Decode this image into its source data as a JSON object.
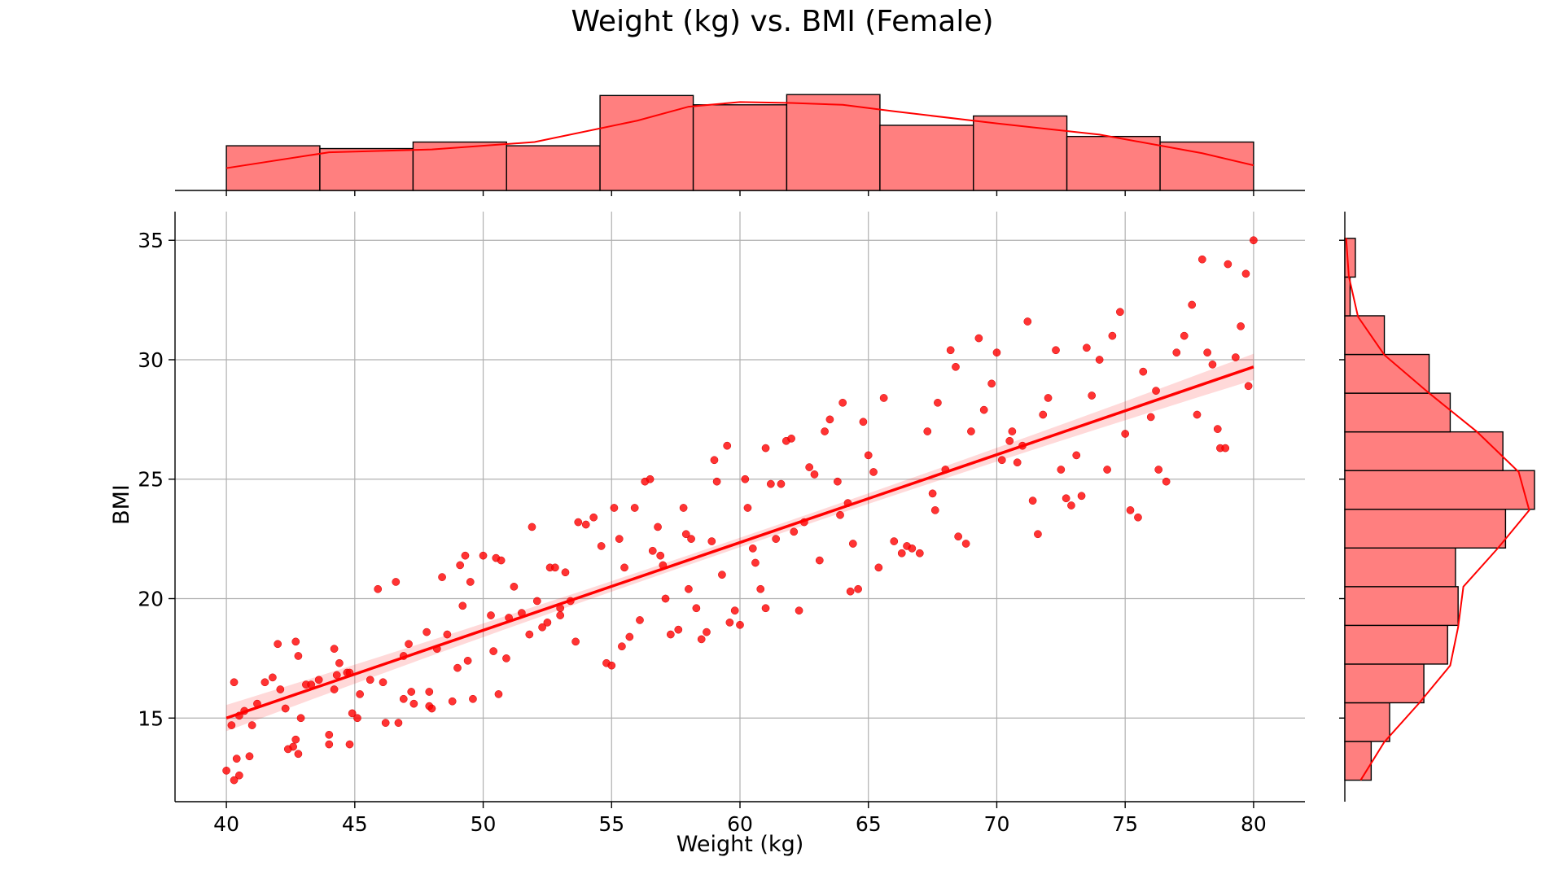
{
  "chart_data": {
    "type": "scatter",
    "title": "Weight (kg) vs. BMI (Female)",
    "xlabel": "Weight (kg)",
    "ylabel": "BMI",
    "xlim": [
      38,
      82
    ],
    "ylim": [
      11.5,
      36.2
    ],
    "grid": true,
    "x_ticks": [
      40,
      45,
      50,
      55,
      60,
      65,
      70,
      75,
      80
    ],
    "y_ticks": [
      15,
      20,
      25,
      30,
      35
    ],
    "point_color": "#ff0000",
    "hist_color": "#ff7f7f",
    "regression": {
      "x": [
        40,
        80
      ],
      "y": [
        15.0,
        29.7
      ],
      "ci_halfwidth_at_ends": 0.55,
      "ci_halfwidth_at_center": 0.2
    },
    "marginal_x_hist": {
      "bin_edges": [
        40,
        43.64,
        47.27,
        50.91,
        54.55,
        58.18,
        61.82,
        65.45,
        69.09,
        72.73,
        76.36,
        80
      ],
      "counts": [
        48,
        45,
        52,
        48,
        102,
        92,
        103,
        70,
        80,
        58,
        52
      ],
      "kde": [
        [
          40,
          24
        ],
        [
          44,
          41
        ],
        [
          48,
          44
        ],
        [
          52,
          52
        ],
        [
          56,
          75
        ],
        [
          58,
          90
        ],
        [
          60,
          95
        ],
        [
          62,
          94
        ],
        [
          64,
          92
        ],
        [
          66,
          85
        ],
        [
          70,
          72
        ],
        [
          74,
          60
        ],
        [
          78,
          40
        ],
        [
          80,
          27
        ]
      ]
    },
    "marginal_y_hist": {
      "bin_edges": [
        12.4,
        14.02,
        15.64,
        17.26,
        18.88,
        20.5,
        22.12,
        23.74,
        25.36,
        26.98,
        28.6,
        30.22,
        31.84,
        33.46,
        35.08
      ],
      "counts": [
        10,
        17,
        30,
        39,
        43,
        42,
        61,
        72,
        60,
        40,
        32,
        15,
        2,
        4
      ],
      "kde": [
        [
          12.4,
          6
        ],
        [
          14.0,
          15
        ],
        [
          15.6,
          28
        ],
        [
          17.2,
          40
        ],
        [
          18.8,
          43
        ],
        [
          20.5,
          45
        ],
        [
          22.1,
          58
        ],
        [
          23.7,
          70
        ],
        [
          25.3,
          66
        ],
        [
          27.0,
          50
        ],
        [
          28.6,
          32
        ],
        [
          30.2,
          15
        ],
        [
          31.8,
          5
        ],
        [
          33.5,
          1.5
        ],
        [
          35.1,
          0.5
        ]
      ]
    },
    "points": [
      [
        40.0,
        12.8
      ],
      [
        40.3,
        12.4
      ],
      [
        40.5,
        12.6
      ],
      [
        40.9,
        13.4
      ],
      [
        40.4,
        13.3
      ],
      [
        40.2,
        14.7
      ],
      [
        40.5,
        15.1
      ],
      [
        40.7,
        15.3
      ],
      [
        41.0,
        14.7
      ],
      [
        40.3,
        16.5
      ],
      [
        41.2,
        15.6
      ],
      [
        41.5,
        16.5
      ],
      [
        41.8,
        16.7
      ],
      [
        42.0,
        18.1
      ],
      [
        42.1,
        16.2
      ],
      [
        42.3,
        15.4
      ],
      [
        42.6,
        13.8
      ],
      [
        42.8,
        13.5
      ],
      [
        42.7,
        14.1
      ],
      [
        42.4,
        13.7
      ],
      [
        42.9,
        15.0
      ],
      [
        43.1,
        16.4
      ],
      [
        43.3,
        16.4
      ],
      [
        42.8,
        17.6
      ],
      [
        42.7,
        18.2
      ],
      [
        43.6,
        16.6
      ],
      [
        44.0,
        14.3
      ],
      [
        44.0,
        13.9
      ],
      [
        44.2,
        16.2
      ],
      [
        44.3,
        16.8
      ],
      [
        44.4,
        17.3
      ],
      [
        44.2,
        17.9
      ],
      [
        44.7,
        16.9
      ],
      [
        44.8,
        16.9
      ],
      [
        44.8,
        13.9
      ],
      [
        44.9,
        15.2
      ],
      [
        45.1,
        15.0
      ],
      [
        45.2,
        16.0
      ],
      [
        45.6,
        16.6
      ],
      [
        46.1,
        16.5
      ],
      [
        45.9,
        20.4
      ],
      [
        46.6,
        20.7
      ],
      [
        46.2,
        14.8
      ],
      [
        46.7,
        14.8
      ],
      [
        46.9,
        17.6
      ],
      [
        47.1,
        18.1
      ],
      [
        47.3,
        15.6
      ],
      [
        47.2,
        16.1
      ],
      [
        47.8,
        18.6
      ],
      [
        47.9,
        15.5
      ],
      [
        47.9,
        16.1
      ],
      [
        48.0,
        15.4
      ],
      [
        48.2,
        17.9
      ],
      [
        48.4,
        20.9
      ],
      [
        48.6,
        18.5
      ],
      [
        48.8,
        15.7
      ],
      [
        49.0,
        17.1
      ],
      [
        49.2,
        19.7
      ],
      [
        49.1,
        21.4
      ],
      [
        49.3,
        21.8
      ],
      [
        49.5,
        20.7
      ],
      [
        49.4,
        17.4
      ],
      [
        49.6,
        15.8
      ],
      [
        50.0,
        21.8
      ],
      [
        50.3,
        19.3
      ],
      [
        50.5,
        21.7
      ],
      [
        50.7,
        21.6
      ],
      [
        50.4,
        17.8
      ],
      [
        50.6,
        16.0
      ],
      [
        50.9,
        17.5
      ],
      [
        51.0,
        19.2
      ],
      [
        51.2,
        20.5
      ],
      [
        51.5,
        19.4
      ],
      [
        51.8,
        18.5
      ],
      [
        51.9,
        23.0
      ],
      [
        52.1,
        19.9
      ],
      [
        52.3,
        18.8
      ],
      [
        52.6,
        21.3
      ],
      [
        52.8,
        21.3
      ],
      [
        52.5,
        19.0
      ],
      [
        53.0,
        19.6
      ],
      [
        53.2,
        21.1
      ],
      [
        53.4,
        19.9
      ],
      [
        53.6,
        18.2
      ],
      [
        53.7,
        23.2
      ],
      [
        54.0,
        23.1
      ],
      [
        54.3,
        23.4
      ],
      [
        54.6,
        22.2
      ],
      [
        54.8,
        17.3
      ],
      [
        55.0,
        17.2
      ],
      [
        55.1,
        23.8
      ],
      [
        55.3,
        22.5
      ],
      [
        55.5,
        21.3
      ],
      [
        55.7,
        18.4
      ],
      [
        55.4,
        18.0
      ],
      [
        55.9,
        23.8
      ],
      [
        56.1,
        19.1
      ],
      [
        56.3,
        24.9
      ],
      [
        56.5,
        25.0
      ],
      [
        56.6,
        22.0
      ],
      [
        56.8,
        23.0
      ],
      [
        56.9,
        21.8
      ],
      [
        57.1,
        20.0
      ],
      [
        57.3,
        18.5
      ],
      [
        57.6,
        18.7
      ],
      [
        57.8,
        23.8
      ],
      [
        57.9,
        22.7
      ],
      [
        58.1,
        22.5
      ],
      [
        58.0,
        20.4
      ],
      [
        58.3,
        19.6
      ],
      [
        58.5,
        18.3
      ],
      [
        58.7,
        18.6
      ],
      [
        58.9,
        22.4
      ],
      [
        59.0,
        25.8
      ],
      [
        59.1,
        24.9
      ],
      [
        59.3,
        21.0
      ],
      [
        59.5,
        26.4
      ],
      [
        59.6,
        19.0
      ],
      [
        59.8,
        19.5
      ],
      [
        60.0,
        18.9
      ],
      [
        60.2,
        25.0
      ],
      [
        60.3,
        23.8
      ],
      [
        60.5,
        22.1
      ],
      [
        60.6,
        21.5
      ],
      [
        60.8,
        20.4
      ],
      [
        61.0,
        26.3
      ],
      [
        61.2,
        24.8
      ],
      [
        61.4,
        22.5
      ],
      [
        61.6,
        24.8
      ],
      [
        61.8,
        26.6
      ],
      [
        62.0,
        26.7
      ],
      [
        62.1,
        22.8
      ],
      [
        62.3,
        19.5
      ],
      [
        62.5,
        23.2
      ],
      [
        62.7,
        25.5
      ],
      [
        62.9,
        25.2
      ],
      [
        63.1,
        21.6
      ],
      [
        63.3,
        27.0
      ],
      [
        63.5,
        27.5
      ],
      [
        63.8,
        24.9
      ],
      [
        64.0,
        28.2
      ],
      [
        64.2,
        24.0
      ],
      [
        64.4,
        22.3
      ],
      [
        64.3,
        20.3
      ],
      [
        64.6,
        20.4
      ],
      [
        64.8,
        27.4
      ],
      [
        65.0,
        26.0
      ],
      [
        65.2,
        25.3
      ],
      [
        65.4,
        21.3
      ],
      [
        65.6,
        28.4
      ],
      [
        66.0,
        22.4
      ],
      [
        66.3,
        21.9
      ],
      [
        66.5,
        22.2
      ],
      [
        66.7,
        22.1
      ],
      [
        67.0,
        21.9
      ],
      [
        67.3,
        27.0
      ],
      [
        67.5,
        24.4
      ],
      [
        67.7,
        28.2
      ],
      [
        68.0,
        25.4
      ],
      [
        68.2,
        30.4
      ],
      [
        68.4,
        29.7
      ],
      [
        68.5,
        22.6
      ],
      [
        68.8,
        22.3
      ],
      [
        69.0,
        27.0
      ],
      [
        69.3,
        30.9
      ],
      [
        69.5,
        27.9
      ],
      [
        69.8,
        29.0
      ],
      [
        70.0,
        30.3
      ],
      [
        70.2,
        25.8
      ],
      [
        70.5,
        26.6
      ],
      [
        70.8,
        25.7
      ],
      [
        71.0,
        26.4
      ],
      [
        71.2,
        31.6
      ],
      [
        71.4,
        24.1
      ],
      [
        71.6,
        22.7
      ],
      [
        71.8,
        27.7
      ],
      [
        72.0,
        28.4
      ],
      [
        72.3,
        30.4
      ],
      [
        72.5,
        25.4
      ],
      [
        72.7,
        24.2
      ],
      [
        72.9,
        23.9
      ],
      [
        73.1,
        26.0
      ],
      [
        73.3,
        24.3
      ],
      [
        73.5,
        30.5
      ],
      [
        73.7,
        28.5
      ],
      [
        74.0,
        30.0
      ],
      [
        74.3,
        25.4
      ],
      [
        74.5,
        31.0
      ],
      [
        74.8,
        32.0
      ],
      [
        75.0,
        26.9
      ],
      [
        75.2,
        23.7
      ],
      [
        75.5,
        23.4
      ],
      [
        75.7,
        29.5
      ],
      [
        76.0,
        27.6
      ],
      [
        76.3,
        25.4
      ],
      [
        76.6,
        24.9
      ],
      [
        77.0,
        30.3
      ],
      [
        77.3,
        31.0
      ],
      [
        77.6,
        32.3
      ],
      [
        77.8,
        27.7
      ],
      [
        78.0,
        34.2
      ],
      [
        78.2,
        30.3
      ],
      [
        78.4,
        29.8
      ],
      [
        78.6,
        27.1
      ],
      [
        78.7,
        26.3
      ],
      [
        78.9,
        26.3
      ],
      [
        79.0,
        34.0
      ],
      [
        79.3,
        30.1
      ],
      [
        79.5,
        31.4
      ],
      [
        79.7,
        33.6
      ],
      [
        79.8,
        28.9
      ],
      [
        80.0,
        35.0
      ],
      [
        53.0,
        19.3
      ],
      [
        57.0,
        21.4
      ],
      [
        61.0,
        19.6
      ],
      [
        63.9,
        23.5
      ],
      [
        67.6,
        23.7
      ],
      [
        70.6,
        27.0
      ],
      [
        76.2,
        28.7
      ],
      [
        46.9,
        15.8
      ]
    ]
  }
}
